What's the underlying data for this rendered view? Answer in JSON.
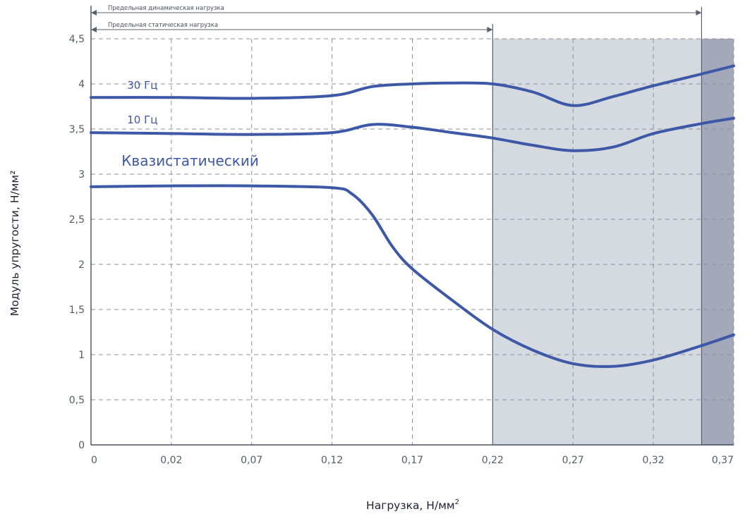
{
  "chart_data": {
    "type": "line",
    "xlabel": "Нагрузка, Н/мм",
    "xlabel_sup": "2",
    "ylabel": "Модуль упругости, Н/мм²",
    "x_ticks": [
      "0",
      "0,02",
      "0,07",
      "0,12",
      "0,17",
      "0,22",
      "0,27",
      "0,32",
      "0,37"
    ],
    "y_ticks": [
      "0",
      "0,5",
      "1",
      "1,5",
      "2",
      "2,5",
      "3",
      "3,5",
      "4",
      "4,5"
    ],
    "ylim": [
      0,
      4.5
    ],
    "grid": true,
    "limits": [
      {
        "name": "Предельная динамическая нагрузка",
        "start_tick": 0,
        "end_tick": 7.6
      },
      {
        "name": "Предельная статическая нагрузка",
        "start_tick": 0,
        "end_tick": 5
      }
    ],
    "shaded_regions": [
      {
        "from_tick": 5,
        "to_tick": 7.6,
        "color": "#d5d9e0"
      },
      {
        "from_tick": 7.6,
        "to_tick": 8,
        "color": "#a3a8ba"
      }
    ],
    "series": [
      {
        "name": "30 Гц",
        "tick_pos": [
          0,
          1,
          2,
          3,
          3.5,
          4,
          4.5,
          5,
          5.5,
          6,
          6.5,
          7,
          7.6,
          8
        ],
        "values": [
          3.85,
          3.85,
          3.84,
          3.87,
          3.97,
          4.0,
          4.01,
          4.0,
          3.91,
          3.76,
          3.86,
          3.98,
          4.11,
          4.2
        ],
        "label_at_tick": 0.45
      },
      {
        "name": "10 Гц",
        "tick_pos": [
          0,
          1,
          2,
          3,
          3.5,
          4,
          4.5,
          5,
          5.5,
          6,
          6.5,
          7,
          7.6,
          8
        ],
        "values": [
          3.46,
          3.45,
          3.44,
          3.46,
          3.55,
          3.52,
          3.46,
          3.4,
          3.32,
          3.26,
          3.3,
          3.45,
          3.56,
          3.62
        ],
        "label_at_tick": 0.45
      },
      {
        "name": "Квазистатический",
        "tick_pos": [
          0,
          1,
          2,
          3,
          3.25,
          3.5,
          3.75,
          4,
          4.5,
          5,
          5.5,
          6,
          6.5,
          7,
          7.6,
          8
        ],
        "values": [
          2.86,
          2.87,
          2.87,
          2.85,
          2.78,
          2.55,
          2.2,
          1.95,
          1.6,
          1.28,
          1.05,
          0.9,
          0.87,
          0.94,
          1.1,
          1.22
        ],
        "label_at_tick": 0.45
      }
    ]
  },
  "colors": {
    "line": "#3d58a6",
    "shade_light": "#d5d9e0",
    "shade_dark": "#a3a8ba"
  }
}
